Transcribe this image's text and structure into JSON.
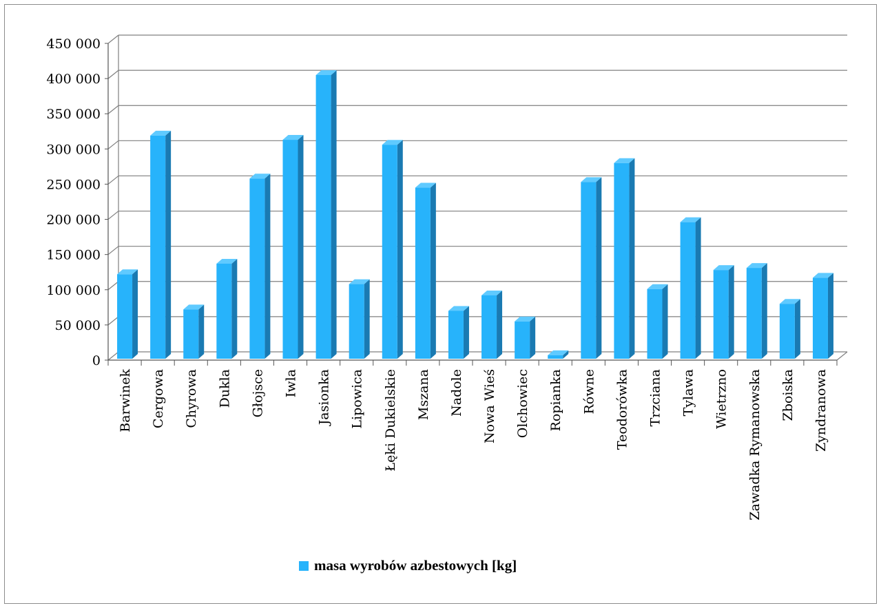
{
  "chart_data": {
    "type": "bar",
    "categories": [
      "Barwinek",
      "Cergowa",
      "Chyrowa",
      "Dukla",
      "Głojsce",
      "Iwla",
      "Jasionka",
      "Lipowica",
      "Łęki Dukielskie",
      "Mszana",
      "Nadole",
      "Nowa Wieś",
      "Olchowiec",
      "Ropianka",
      "Równe",
      "Teodorówka",
      "Trzciana",
      "Tylawa",
      "Wietrzno",
      "Zawadka Rymanowska",
      "Zboiska",
      "Zyndranowa"
    ],
    "series": [
      {
        "name": "masa wyrobów azbestowych [kg]",
        "values": [
          122000,
          319000,
          72000,
          137000,
          258000,
          313000,
          405000,
          108000,
          306000,
          245000,
          70000,
          92000,
          55000,
          7000,
          253000,
          280000,
          101000,
          196000,
          128000,
          131000,
          80000,
          117000
        ]
      }
    ],
    "y_ticks": [
      "0",
      "50 000",
      "100 000",
      "150 000",
      "200 000",
      "250 000",
      "300 000",
      "350 000",
      "400 000",
      "450 000"
    ],
    "ylim": [
      0,
      450000
    ],
    "grid": true,
    "legend_position": "bottom",
    "colors": {
      "bar_front": "#27b3fb",
      "bar_side": "#1a7ab2",
      "bar_top": "#5fcaff",
      "grid": "#7f7f7f"
    }
  }
}
